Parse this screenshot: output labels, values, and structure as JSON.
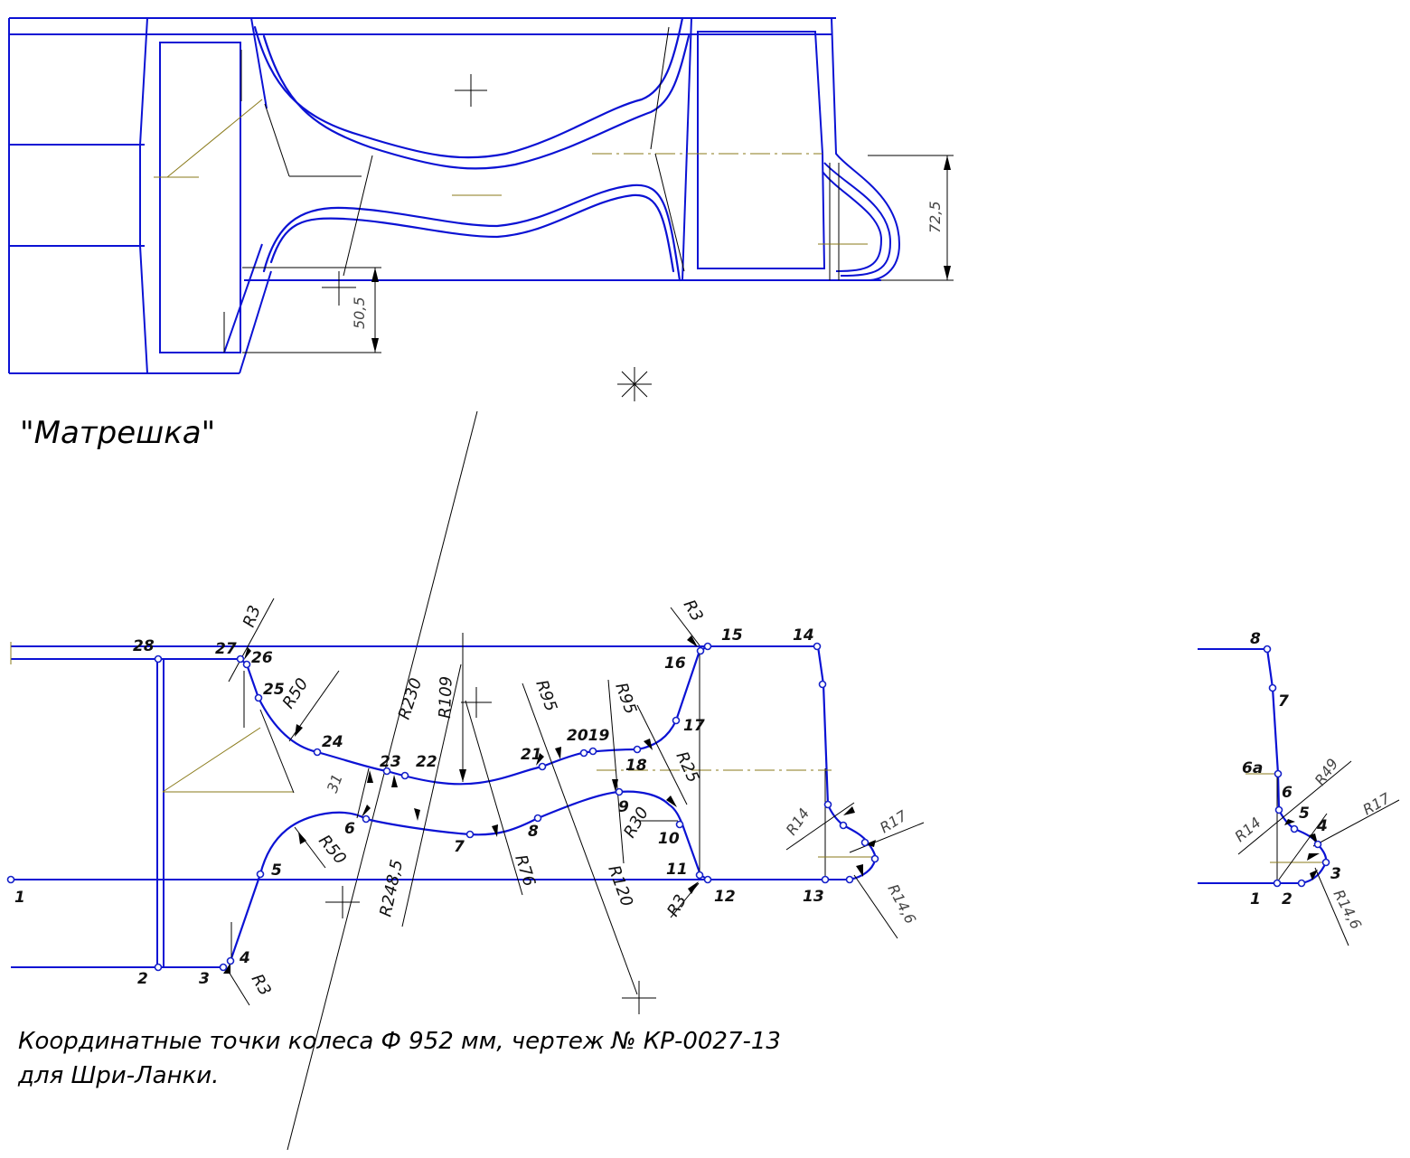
{
  "title": "\"Матрешка\"",
  "caption": {
    "line1": "Координатные точки колеса Ф 952 мм, чертеж № КР-0027-13",
    "line2": "для Шри-Ланки."
  },
  "top_view": {
    "dim_725": "72,5",
    "dim_505": "50,5"
  },
  "profile_points": {
    "p1": "1",
    "p2": "2",
    "p3": "3",
    "p4": "4",
    "p5": "5",
    "p6": "6",
    "p7": "7",
    "p8": "8",
    "p9": "9",
    "p10": "10",
    "p11": "11",
    "p12": "12",
    "p13": "13",
    "p14": "14",
    "p15": "15",
    "p16": "16",
    "p17": "17",
    "p18": "18",
    "p2019": "2019",
    "p21": "21",
    "p22": "22",
    "p23": "23",
    "p24": "24",
    "p25": "25",
    "p26": "26",
    "p27": "27",
    "p28": "28"
  },
  "radii": {
    "r3_top_left": "R3",
    "r3_top_right": "R3",
    "r3_bottom_left": "R3",
    "r3_bottom_right": "R3",
    "r50_top": "R50",
    "r50_bottom": "R50",
    "r230": "R230",
    "r109": "R109",
    "r95_a": "R95",
    "r95_b": "R95",
    "r25": "R25",
    "r30": "R30",
    "r76": "R76",
    "r120": "R120",
    "r248": "R248,5",
    "r14": "R14",
    "r17": "R17",
    "r146": "R14,6",
    "dim_31": "31"
  },
  "detail": {
    "p1": "1",
    "p2": "2",
    "p3": "3",
    "p4": "4",
    "p5": "5",
    "p6": "6",
    "p6a": "6a",
    "p7": "7",
    "p8": "8",
    "r14": "R14",
    "r49": "R49",
    "r17": "R17",
    "r146": "R14,6"
  }
}
